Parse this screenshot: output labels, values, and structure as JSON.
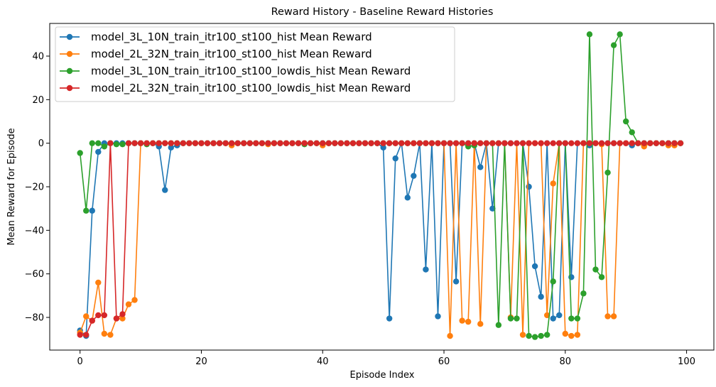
{
  "chart_data": {
    "type": "line",
    "title": "Reward History - Baseline Reward Histories",
    "xlabel": "Episode Index",
    "ylabel": "Mean Reward for Episode",
    "xlim": [
      -5,
      104.5
    ],
    "ylim": [
      -95,
      55
    ],
    "xticks": [
      0,
      20,
      40,
      60,
      80,
      100
    ],
    "yticks": [
      -80,
      -60,
      -40,
      -20,
      0,
      20,
      40
    ],
    "grid": false,
    "legend_position": "upper-left",
    "series": [
      {
        "name": "model_3L_10N_train_itr100_st100_hist Mean Reward",
        "color": "#1f77b4",
        "values": [
          -86,
          -88.5,
          -31,
          -4,
          0,
          0,
          0,
          0,
          0,
          0,
          0,
          0,
          0,
          -1.5,
          -21.5,
          -2,
          -1,
          0,
          0,
          0,
          0,
          0,
          0,
          0,
          0,
          0,
          0,
          0,
          0,
          0,
          0,
          0,
          0,
          0,
          0,
          0,
          0,
          0,
          0,
          0,
          0,
          0,
          0,
          0,
          0,
          0,
          0,
          0,
          0,
          0,
          -2,
          -80.5,
          -7,
          0,
          -25,
          -15,
          0,
          -58,
          0,
          -79.5,
          0,
          0,
          -63.5,
          0,
          0,
          0,
          -11,
          0,
          -30,
          0,
          0,
          0,
          0,
          0,
          -20,
          -56.5,
          -70.5,
          0,
          -80.5,
          -79,
          0,
          -61.5,
          0,
          0,
          -1,
          0,
          0,
          0,
          0,
          0,
          0,
          -1,
          0,
          0,
          0,
          0,
          0,
          0,
          0,
          0
        ]
      },
      {
        "name": "model_2L_32N_train_itr100_st100_hist Mean Reward",
        "color": "#ff7f0e",
        "values": [
          -87,
          -79.5,
          -81.5,
          -64,
          -87.5,
          -88,
          -80.5,
          -80.5,
          -74,
          -72,
          0,
          0,
          0,
          0,
          0,
          0,
          0,
          0,
          0,
          0,
          0,
          0,
          0,
          0,
          0,
          -1,
          0,
          0,
          0,
          0,
          0,
          -0.5,
          0,
          0,
          0,
          0,
          0,
          0,
          0,
          0,
          -1,
          0,
          0,
          0,
          0,
          0,
          0,
          0,
          0,
          0,
          0,
          0,
          0,
          0,
          0,
          0,
          0,
          0,
          0,
          0,
          0,
          -88.5,
          0,
          -81.5,
          -82,
          0,
          -83,
          0,
          0,
          0,
          0,
          -80,
          0,
          -88,
          0,
          0,
          0,
          -79,
          -18.5,
          0,
          -87.5,
          -88.5,
          -88,
          0,
          0,
          0,
          -0.5,
          -79.5,
          -79.5,
          0,
          0,
          0,
          0,
          -1.5,
          0,
          0,
          0,
          -1,
          -1,
          0
        ]
      },
      {
        "name": "model_3L_10N_train_itr100_st100_lowdis_hist Mean Reward",
        "color": "#2ca02c",
        "values": [
          -4.5,
          -31,
          0,
          0,
          -1.5,
          0,
          -0.5,
          -0.5,
          0,
          0,
          0,
          -0.5,
          0,
          0,
          0,
          0,
          0,
          0,
          0,
          0,
          0,
          0,
          0,
          0,
          0,
          0,
          0,
          0,
          0,
          0,
          0,
          0,
          0,
          0,
          0,
          0,
          0,
          -0.5,
          0,
          0,
          0,
          0,
          0,
          0,
          0,
          0,
          0,
          0,
          0,
          0,
          0,
          0,
          0,
          0,
          0,
          0,
          0,
          0,
          0,
          0,
          0,
          0,
          0,
          0,
          -1.5,
          -1,
          0,
          0,
          0,
          -83.5,
          0,
          -80.5,
          -80.5,
          0,
          -88.5,
          -89,
          -88.5,
          -88,
          -63.5,
          0,
          0,
          -80.5,
          -80.5,
          -69,
          50,
          -58,
          -61.5,
          -13.5,
          45,
          50,
          10,
          5,
          0,
          0,
          0,
          0,
          0,
          0,
          0,
          0
        ]
      },
      {
        "name": "model_2L_32N_train_itr100_st100_lowdis_hist Mean Reward",
        "color": "#d62728",
        "values": [
          -88,
          -88,
          -81.5,
          -79,
          -79,
          0,
          -80.5,
          -78.5,
          0,
          0,
          0,
          0,
          0,
          0,
          0,
          0,
          0,
          0,
          0,
          0,
          0,
          0,
          0,
          0,
          0,
          0,
          0,
          0,
          0,
          0,
          0,
          0,
          0,
          0,
          0,
          0,
          0,
          0,
          0,
          0,
          0,
          0,
          0,
          0,
          0,
          0,
          0,
          0,
          0,
          0,
          0,
          0,
          0,
          0,
          0,
          0,
          0,
          0,
          0,
          0,
          0,
          0,
          0,
          0,
          0,
          0,
          0,
          0,
          0,
          0,
          0,
          0,
          0,
          0,
          0,
          0,
          0,
          0,
          0,
          0,
          0,
          0,
          0,
          0,
          0,
          0,
          0,
          0,
          0,
          0,
          0,
          0,
          0,
          0,
          0,
          0,
          0,
          0,
          0,
          0
        ]
      }
    ]
  }
}
